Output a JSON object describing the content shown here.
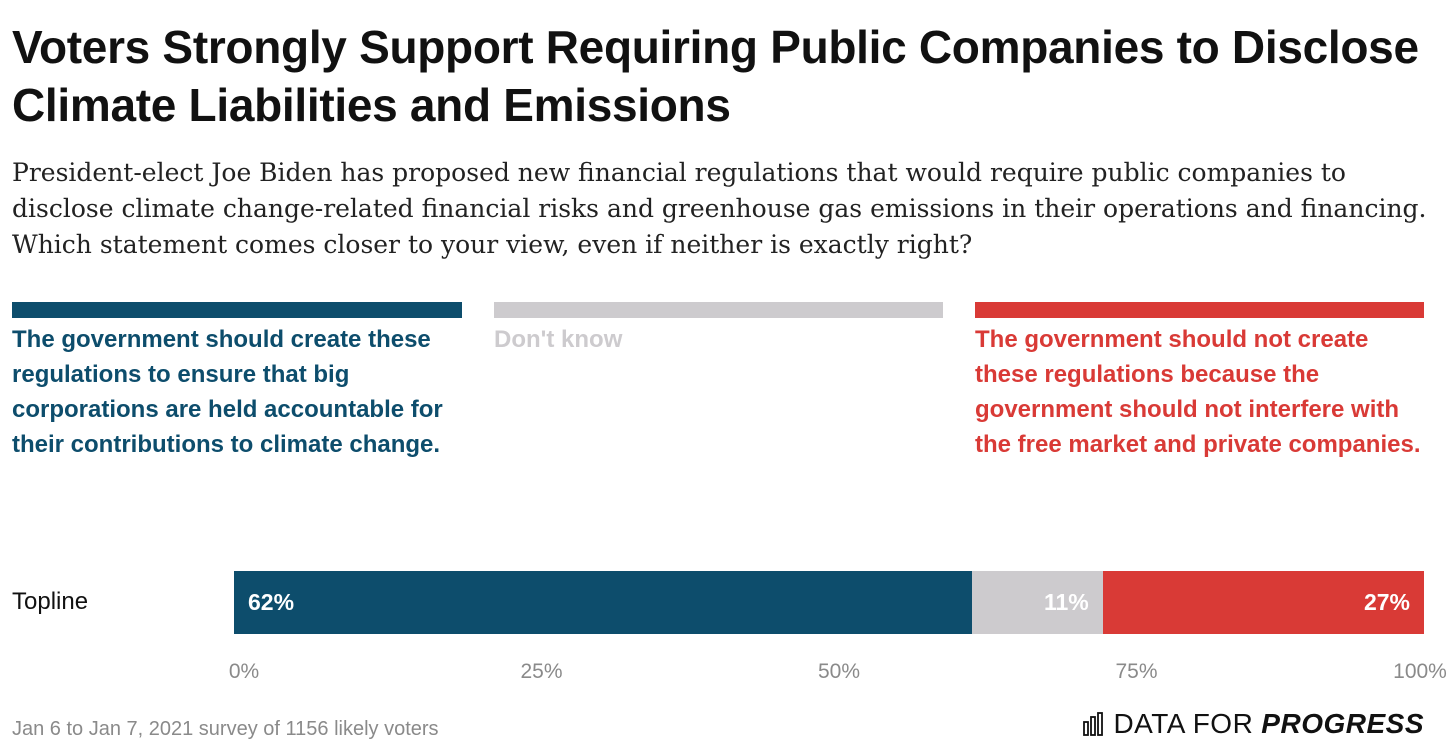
{
  "header": {
    "title": "Voters Strongly Support Requiring Public Companies to Disclose Climate Liabilities and Emissions",
    "subtitle": "President-elect Joe Biden has proposed new financial regulations that would require public companies to disclose climate change-related financial risks and greenhouse gas emissions in their operations and financing. Which statement comes closer to your view, even if neither is exactly right?"
  },
  "legend": [
    {
      "label": "The government should create these regulations to ensure that big corporations are held accountable for their contributions to climate change.",
      "color": "#0d4d6c"
    },
    {
      "label": "Don't know",
      "color": "#cdcbce"
    },
    {
      "label": "The government should not create these regulations because the government should not interfere with the free market and private companies.",
      "color": "#d93a36"
    }
  ],
  "chart_data": {
    "type": "bar",
    "orientation": "horizontal-stacked",
    "categories": [
      "Topline"
    ],
    "series": [
      {
        "name": "The government should create these regulations to ensure that big corporations are held accountable for their contributions to climate change.",
        "values": [
          62
        ],
        "label": "62%",
        "color": "#0d4d6c"
      },
      {
        "name": "Don't know",
        "values": [
          11
        ],
        "label": "11%",
        "color": "#cdcbce"
      },
      {
        "name": "The government should not create these regulations because the government should not interfere with the free market and private companies.",
        "values": [
          27
        ],
        "label": "27%",
        "color": "#d93a36"
      }
    ],
    "xlim": [
      0,
      100
    ],
    "xticks": [
      0,
      25,
      50,
      75,
      100
    ],
    "xtick_labels": [
      "0%",
      "25%",
      "50%",
      "75%",
      "100%"
    ],
    "grid": false,
    "legend_position": "top"
  },
  "footer": {
    "source": "Jan 6 to Jan 7, 2021 survey of 1156 likely voters",
    "brand_light": "DATA FOR",
    "brand_bold": "PROGRESS",
    "brand_icon": "bar-chart-icon"
  }
}
